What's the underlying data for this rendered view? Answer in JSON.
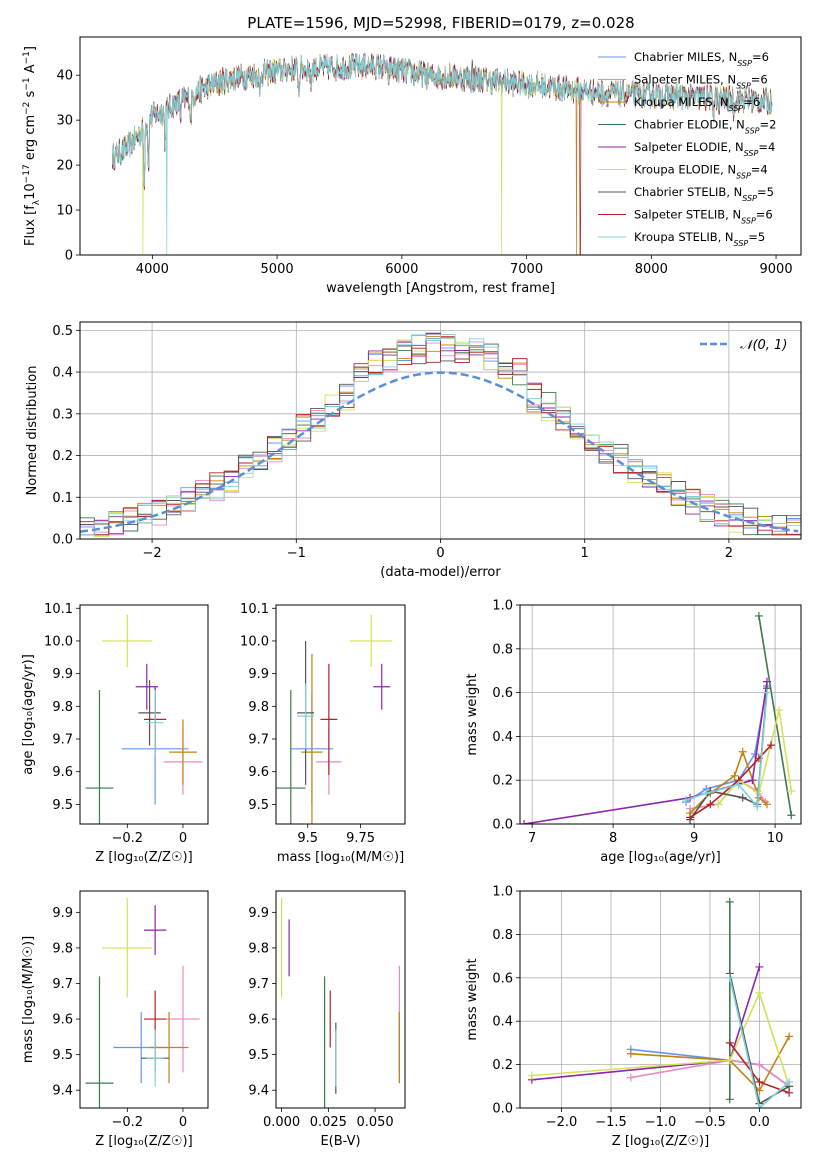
{
  "title": "PLATE=1596, MJD=52998, FIBERID=0179, z=0.028",
  "model_colors": [
    "#6495ed",
    "#e78ac3",
    "#c28213",
    "#3b7a4a",
    "#8e24aa",
    "#d4e157",
    "#555555",
    "#b22222",
    "#7fd1d8"
  ],
  "models": [
    {
      "name": "Chabrier MILES, N_SSP=6",
      "label": "Chabrier MILES, N",
      "sub": "SSP",
      "suffix": "=6"
    },
    {
      "name": "Salpeter MILES, N_SSP=6",
      "label": "Salpeter MILES, N",
      "sub": "SSP",
      "suffix": "=6"
    },
    {
      "name": "Kroupa MILES, N_SSP=6",
      "label": "Kroupa MILES, N",
      "sub": "SSP",
      "suffix": "=6"
    },
    {
      "name": "Chabrier ELODIE, N_SSP=2",
      "label": "Chabrier ELODIE, N",
      "sub": "SSP",
      "suffix": "=2"
    },
    {
      "name": "Salpeter ELODIE, N_SSP=4",
      "label": "Salpeter ELODIE, N",
      "sub": "SSP",
      "suffix": "=4"
    },
    {
      "name": "Kroupa ELODIE, N_SSP=4",
      "label": "Kroupa ELODIE, N",
      "sub": "SSP",
      "suffix": "=4"
    },
    {
      "name": "Chabrier STELIB, N_SSP=5",
      "label": "Chabrier STELIB, N",
      "sub": "SSP",
      "suffix": "=5"
    },
    {
      "name": "Salpeter STELIB, N_SSP=6",
      "label": "Salpeter STELIB, N",
      "sub": "SSP",
      "suffix": "=6"
    },
    {
      "name": "Kroupa STELIB, N_SSP=5",
      "label": "Kroupa STELIB, N",
      "sub": "SSP",
      "suffix": "=5"
    }
  ],
  "chart_data": [
    {
      "id": "spectrum",
      "type": "line",
      "xlabel": "wavelength [Angstrom, rest frame]",
      "ylabel": "Flux [f_λ 10^-17 erg cm^-2 s^-1 A^-1]",
      "xlim": [
        3420,
        9200
      ],
      "ylim": [
        0,
        48.5
      ],
      "xticks": [
        4000,
        5000,
        6000,
        7000,
        8000,
        9000
      ],
      "yticks": [
        0,
        10,
        20,
        30,
        40
      ],
      "grid": false,
      "legend": "top-right",
      "continuum": [
        [
          3700,
          22
        ],
        [
          3800,
          24
        ],
        [
          3900,
          27
        ],
        [
          4000,
          31
        ],
        [
          4100,
          32
        ],
        [
          4200,
          34
        ],
        [
          4300,
          35
        ],
        [
          4400,
          37
        ],
        [
          4500,
          38
        ],
        [
          4600,
          39
        ],
        [
          4800,
          40
        ],
        [
          5000,
          41
        ],
        [
          5200,
          41.5
        ],
        [
          5500,
          41.8
        ],
        [
          5800,
          42
        ],
        [
          6000,
          41
        ],
        [
          6200,
          40
        ],
        [
          6500,
          39.5
        ],
        [
          6800,
          38.5
        ],
        [
          7000,
          38
        ],
        [
          7300,
          37
        ],
        [
          7600,
          36
        ],
        [
          8000,
          35.5
        ],
        [
          8400,
          35
        ],
        [
          8800,
          34.5
        ],
        [
          8970,
          34
        ]
      ],
      "absorption": [
        [
          3934,
          14
        ],
        [
          3969,
          12
        ],
        [
          4102,
          8
        ],
        [
          4227,
          4
        ],
        [
          4308,
          6
        ],
        [
          4861,
          6
        ],
        [
          5175,
          6
        ],
        [
          5270,
          4
        ],
        [
          5890,
          4
        ],
        [
          6563,
          3
        ],
        [
          8498,
          3
        ],
        [
          8542,
          3
        ],
        [
          8662,
          3
        ]
      ],
      "emission": [
        [
          6563,
          6
        ],
        [
          6583,
          4
        ]
      ],
      "dropouts": [
        {
          "model": 5,
          "x": 3925,
          "to": 0
        },
        {
          "model": 8,
          "x": 4115,
          "to": 0
        },
        {
          "model": 5,
          "x": 6800,
          "to": 0
        },
        {
          "model": 7,
          "x": 7430,
          "to": 0
        },
        {
          "model": 2,
          "x": 7400,
          "to": 0
        }
      ]
    },
    {
      "id": "residuals",
      "type": "step",
      "xlabel": "(data-model)/error",
      "ylabel": "Normed distribution",
      "xlim": [
        -2.5,
        2.5
      ],
      "ylim": [
        0,
        0.52
      ],
      "xticks": [
        -2,
        -1,
        0,
        1,
        2
      ],
      "yticks": [
        0.0,
        0.1,
        0.2,
        0.3,
        0.4,
        0.5
      ],
      "grid": true,
      "legend": "top-right",
      "reference_label": "𝒩(0, 1)",
      "reference": {
        "mu": 0,
        "sigma": 1
      }
    },
    {
      "id": "age_vs_Z",
      "type": "scatter",
      "xlabel": "Z [log₁₀(Z/Z☉)]",
      "ylabel": "age  [log₁₀(age/yr)]",
      "xlim": [
        -0.37,
        0.09
      ],
      "ylim": [
        9.44,
        10.11
      ],
      "xticks": [
        -0.2,
        0.0
      ],
      "yticks": [
        9.5,
        9.6,
        9.7,
        9.8,
        9.9,
        10.0,
        10.1
      ],
      "points": [
        {
          "m": 0,
          "x": -0.1,
          "y": 9.67,
          "ex": 0.12,
          "ey": 0.17
        },
        {
          "m": 1,
          "x": 0.0,
          "y": 9.63,
          "ex": 0.07,
          "ey": 0.1
        },
        {
          "m": 2,
          "x": 0.0,
          "y": 9.66,
          "ex": 0.05,
          "ey": 0.1
        },
        {
          "m": 3,
          "x": -0.3,
          "y": 9.55,
          "ex": 0.05,
          "ey": 0.3
        },
        {
          "m": 4,
          "x": -0.13,
          "y": 9.86,
          "ex": 0.04,
          "ey": 0.07
        },
        {
          "m": 5,
          "x": -0.2,
          "y": 10.0,
          "ex": 0.09,
          "ey": 0.08
        },
        {
          "m": 6,
          "x": -0.12,
          "y": 9.78,
          "ex": 0.04,
          "ey": 0.1
        },
        {
          "m": 7,
          "x": -0.1,
          "y": 9.76,
          "ex": 0.04,
          "ey": 0.1
        },
        {
          "m": 8,
          "x": -0.1,
          "y": 9.75,
          "ex": 0.03,
          "ey": 0.1
        }
      ]
    },
    {
      "id": "age_vs_mass",
      "type": "scatter",
      "xlabel": "mass [log₁₀(M/M☉)]",
      "ylabel": "",
      "xlim": [
        9.35,
        9.96
      ],
      "ylim": [
        9.44,
        10.11
      ],
      "xticks": [
        9.5,
        9.75
      ],
      "yticks": [
        9.5,
        9.6,
        9.7,
        9.8,
        9.9,
        10.0,
        10.1
      ],
      "points": [
        {
          "m": 0,
          "x": 9.52,
          "y": 9.67,
          "ex": 0.1,
          "ey": 0.17
        },
        {
          "m": 1,
          "x": 9.6,
          "y": 9.63,
          "ex": 0.06,
          "ey": 0.1
        },
        {
          "m": 2,
          "x": 9.52,
          "y": 9.66,
          "ex": 0.05,
          "ey": 0.3
        },
        {
          "m": 3,
          "x": 9.42,
          "y": 9.55,
          "ex": 0.07,
          "ey": 0.3
        },
        {
          "m": 4,
          "x": 9.85,
          "y": 9.86,
          "ex": 0.04,
          "ey": 0.07
        },
        {
          "m": 5,
          "x": 9.8,
          "y": 10.0,
          "ex": 0.1,
          "ey": 0.08
        },
        {
          "m": 6,
          "x": 9.49,
          "y": 9.78,
          "ex": 0.04,
          "ey": 0.22
        },
        {
          "m": 7,
          "x": 9.6,
          "y": 9.76,
          "ex": 0.04,
          "ey": 0.17
        },
        {
          "m": 8,
          "x": 9.49,
          "y": 9.77,
          "ex": 0.04,
          "ey": 0.1
        }
      ]
    },
    {
      "id": "weight_vs_age",
      "type": "line",
      "xlabel": "age  [log₁₀(age/yr)]",
      "ylabel": "mass weight",
      "xlim": [
        6.85,
        10.32
      ],
      "ylim": [
        0,
        1.0
      ],
      "xticks": [
        7,
        8,
        9,
        10
      ],
      "yticks": [
        0.0,
        0.2,
        0.4,
        0.6,
        0.8,
        1.0
      ],
      "grid": true,
      "series": [
        {
          "m": 0,
          "x": [
            8.9,
            9.15,
            9.55,
            9.75,
            9.9
          ],
          "y": [
            0.1,
            0.16,
            0.2,
            0.32,
            0.63
          ]
        },
        {
          "m": 1,
          "x": [
            8.95,
            9.3,
            9.55,
            9.78,
            9.88
          ],
          "y": [
            0.07,
            0.09,
            0.2,
            0.15,
            0.1
          ]
        },
        {
          "m": 2,
          "x": [
            8.95,
            9.2,
            9.5,
            9.6,
            9.8,
            9.9
          ],
          "y": [
            0.05,
            0.14,
            0.22,
            0.33,
            0.12,
            0.09
          ]
        },
        {
          "m": 3,
          "x": [
            9.8,
            10.2
          ],
          "y": [
            0.95,
            0.04
          ]
        },
        {
          "m": 4,
          "x": [
            6.9,
            8.95,
            9.72,
            9.9
          ],
          "y": [
            0.0,
            0.12,
            0.2,
            0.65
          ]
        },
        {
          "m": 5,
          "x": [
            9.3,
            9.55,
            9.8,
            10.05,
            10.2
          ],
          "y": [
            0.09,
            0.2,
            0.14,
            0.52,
            0.15
          ]
        },
        {
          "m": 6,
          "x": [
            8.95,
            9.2,
            9.6,
            9.78,
            9.9
          ],
          "y": [
            0.02,
            0.15,
            0.12,
            0.09,
            0.62
          ]
        },
        {
          "m": 7,
          "x": [
            8.95,
            9.2,
            9.55,
            9.8,
            9.95
          ],
          "y": [
            0.03,
            0.09,
            0.2,
            0.3,
            0.36
          ]
        },
        {
          "m": 8,
          "x": [
            8.9,
            9.15,
            9.55,
            9.78,
            9.9
          ],
          "y": [
            0.11,
            0.14,
            0.18,
            0.08,
            0.6
          ]
        }
      ]
    },
    {
      "id": "mass_vs_Z",
      "type": "scatter",
      "xlabel": "Z [log₁₀(Z/Z☉)]",
      "ylabel": "mass [log₁₀(M/M☉)]",
      "xlim": [
        -0.37,
        0.09
      ],
      "ylim": [
        9.35,
        9.96
      ],
      "xticks": [
        -0.2,
        0.0
      ],
      "yticks": [
        9.4,
        9.5,
        9.6,
        9.7,
        9.8,
        9.9
      ],
      "points": [
        {
          "m": 0,
          "x": -0.15,
          "y": 9.52,
          "ex": 0.1,
          "ey": 0.1
        },
        {
          "m": 1,
          "x": 0.0,
          "y": 9.6,
          "ex": 0.06,
          "ey": 0.15
        },
        {
          "m": 2,
          "x": -0.05,
          "y": 9.52,
          "ex": 0.07,
          "ey": 0.1
        },
        {
          "m": 3,
          "x": -0.3,
          "y": 9.42,
          "ex": 0.05,
          "ey": 0.3
        },
        {
          "m": 4,
          "x": -0.1,
          "y": 9.85,
          "ex": 0.04,
          "ey": 0.07
        },
        {
          "m": 5,
          "x": -0.2,
          "y": 9.8,
          "ex": 0.09,
          "ey": 0.14
        },
        {
          "m": 6,
          "x": -0.1,
          "y": 9.49,
          "ex": 0.05,
          "ey": 0.04
        },
        {
          "m": 7,
          "x": -0.1,
          "y": 9.6,
          "ex": 0.04,
          "ey": 0.08
        },
        {
          "m": 8,
          "x": -0.1,
          "y": 9.49,
          "ex": 0.03,
          "ey": 0.08
        }
      ]
    },
    {
      "id": "mass_vs_ebv",
      "type": "scatter",
      "xlabel": "E(B-V)",
      "ylabel": "",
      "xlim": [
        -0.003,
        0.066
      ],
      "ylim": [
        9.35,
        9.96
      ],
      "xticks": [
        0.0,
        0.025,
        0.05
      ],
      "xticklabels": [
        "0.000",
        "0.025",
        "0.050"
      ],
      "yticks": [
        9.4,
        9.5,
        9.6,
        9.7,
        9.8,
        9.9
      ],
      "points": [
        {
          "m": 0,
          "x": 0.063,
          "y": 9.52,
          "ex": 0,
          "ey": 0.1
        },
        {
          "m": 1,
          "x": 0.063,
          "y": 9.6,
          "ex": 0,
          "ey": 0.15
        },
        {
          "m": 2,
          "x": 0.063,
          "y": 9.52,
          "ex": 0,
          "ey": 0.1
        },
        {
          "m": 3,
          "x": 0.023,
          "y": 9.42,
          "ex": 0,
          "ey": 0.3
        },
        {
          "m": 4,
          "x": 0.004,
          "y": 9.8,
          "ex": 0,
          "ey": 0.08
        },
        {
          "m": 5,
          "x": 0.0,
          "y": 9.8,
          "ex": 0,
          "ey": 0.14
        },
        {
          "m": 6,
          "x": 0.029,
          "y": 9.49,
          "ex": 0,
          "ey": 0.1
        },
        {
          "m": 7,
          "x": 0.026,
          "y": 9.6,
          "ex": 0,
          "ey": 0.08
        },
        {
          "m": 8,
          "x": 0.029,
          "y": 9.49,
          "ex": 0,
          "ey": 0.08
        }
      ]
    },
    {
      "id": "weight_vs_Z",
      "type": "line",
      "xlabel": "Z [log₁₀(Z/Z☉)]",
      "ylabel": "mass weight",
      "xlim": [
        -2.42,
        0.42
      ],
      "ylim": [
        0,
        1.0
      ],
      "xticks": [
        -2.0,
        -1.5,
        -1.0,
        -0.5,
        0.0
      ],
      "yticks": [
        0.0,
        0.2,
        0.4,
        0.6,
        0.8,
        1.0
      ],
      "grid": true,
      "series": [
        {
          "m": 0,
          "x": [
            -1.3,
            -0.3,
            0.0,
            0.3
          ],
          "y": [
            0.27,
            0.22,
            0.2,
            0.1
          ]
        },
        {
          "m": 1,
          "x": [
            -1.3,
            -0.3,
            0.0,
            0.3
          ],
          "y": [
            0.14,
            0.22,
            0.2,
            0.1
          ]
        },
        {
          "m": 2,
          "x": [
            -1.3,
            -0.3,
            0.0,
            0.3
          ],
          "y": [
            0.25,
            0.22,
            0.08,
            0.33
          ]
        },
        {
          "m": 3,
          "x": [
            -0.3,
            -0.3
          ],
          "y": [
            0.95,
            0.04
          ]
        },
        {
          "m": 4,
          "x": [
            -2.3,
            -0.3,
            0.0
          ],
          "y": [
            0.13,
            0.22,
            0.65
          ]
        },
        {
          "m": 5,
          "x": [
            -2.3,
            -0.3,
            0.0,
            0.3
          ],
          "y": [
            0.15,
            0.22,
            0.53,
            0.1
          ]
        },
        {
          "m": 6,
          "x": [
            -0.3,
            0.0,
            0.3
          ],
          "y": [
            0.62,
            0.02,
            0.1
          ]
        },
        {
          "m": 7,
          "x": [
            -0.3,
            0.0,
            0.3
          ],
          "y": [
            0.3,
            0.12,
            0.07
          ]
        },
        {
          "m": 8,
          "x": [
            -0.3,
            0.0,
            0.3
          ],
          "y": [
            0.6,
            0.0,
            0.12
          ]
        }
      ]
    }
  ]
}
